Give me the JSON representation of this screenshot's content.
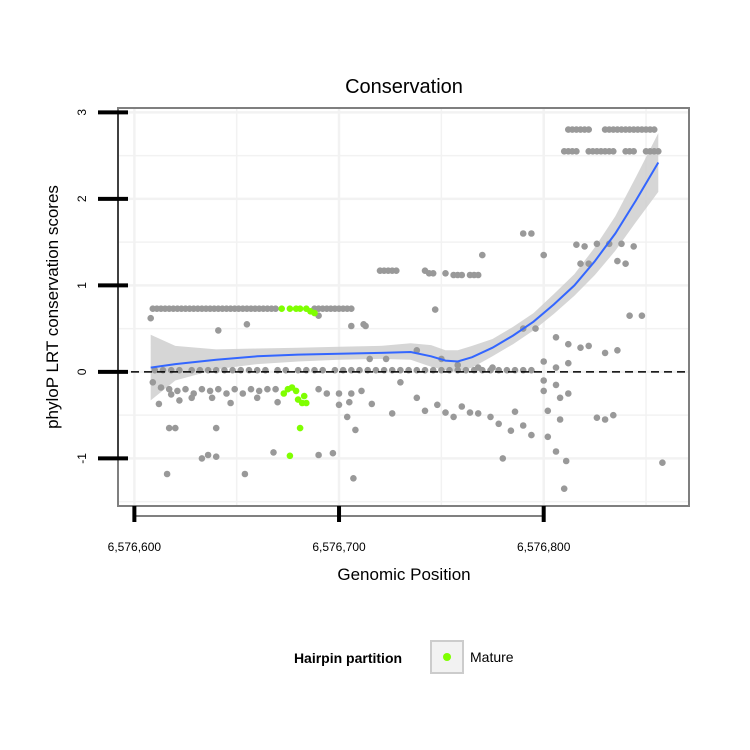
{
  "chart_data": {
    "type": "scatter",
    "title": "Conservation",
    "xlabel": "Genomic Position",
    "ylabel": "phyloP LRT conservation scores",
    "xlim": [
      6576592,
      6576871
    ],
    "ylim": [
      -1.55,
      3.05
    ],
    "x_ticks": [
      6576600,
      6576700,
      6576800
    ],
    "x_tick_labels": [
      "6,576,600",
      "6,576,700",
      "6,576,800"
    ],
    "y_ticks": [
      -1,
      0,
      1,
      2,
      3
    ],
    "y_tick_labels": [
      "-1",
      "0",
      "1",
      "2",
      "3"
    ],
    "grid": true,
    "reference_line": {
      "y": 0,
      "style": "dashed",
      "color": "#000000"
    },
    "colors": {
      "points": "#999999",
      "mature": "#7FFF00",
      "smooth": "#3366FF",
      "band": "#cccccc",
      "grid": "#f2f2f2",
      "panel_border": "#7f7f7f"
    },
    "legend": {
      "title": "Hairpin partition",
      "position": "bottom",
      "entries": [
        "Mature"
      ]
    },
    "series": [
      {
        "name": "",
        "color": "#999999",
        "points": [
          [
            6576609,
            0.73
          ],
          [
            6576611,
            0.73
          ],
          [
            6576613,
            0.73
          ],
          [
            6576615,
            0.73
          ],
          [
            6576617,
            0.73
          ],
          [
            6576619,
            0.73
          ],
          [
            6576621,
            0.73
          ],
          [
            6576623,
            0.73
          ],
          [
            6576625,
            0.73
          ],
          [
            6576627,
            0.73
          ],
          [
            6576629,
            0.73
          ],
          [
            6576631,
            0.73
          ],
          [
            6576633,
            0.73
          ],
          [
            6576635,
            0.73
          ],
          [
            6576637,
            0.73
          ],
          [
            6576639,
            0.73
          ],
          [
            6576641,
            0.73
          ],
          [
            6576643,
            0.73
          ],
          [
            6576645,
            0.73
          ],
          [
            6576647,
            0.73
          ],
          [
            6576649,
            0.73
          ],
          [
            6576651,
            0.73
          ],
          [
            6576653,
            0.73
          ],
          [
            6576655,
            0.73
          ],
          [
            6576657,
            0.73
          ],
          [
            6576659,
            0.73
          ],
          [
            6576661,
            0.73
          ],
          [
            6576663,
            0.73
          ],
          [
            6576665,
            0.73
          ],
          [
            6576667,
            0.73
          ],
          [
            6576669,
            0.73
          ],
          [
            6576688,
            0.73
          ],
          [
            6576690,
            0.73
          ],
          [
            6576692,
            0.73
          ],
          [
            6576694,
            0.73
          ],
          [
            6576696,
            0.73
          ],
          [
            6576698,
            0.73
          ],
          [
            6576700,
            0.73
          ],
          [
            6576702,
            0.73
          ],
          [
            6576704,
            0.73
          ],
          [
            6576706,
            0.73
          ],
          [
            6576608,
            0.62
          ],
          [
            6576641,
            0.48
          ],
          [
            6576655,
            0.55
          ],
          [
            6576690,
            0.65
          ],
          [
            6576706,
            0.53
          ],
          [
            6576713,
            0.53
          ],
          [
            6576610,
            0.02
          ],
          [
            6576614,
            0.02
          ],
          [
            6576618,
            0.02
          ],
          [
            6576622,
            0.02
          ],
          [
            6576628,
            0.02
          ],
          [
            6576632,
            0.02
          ],
          [
            6576636,
            0.02
          ],
          [
            6576640,
            0.02
          ],
          [
            6576644,
            0.02
          ],
          [
            6576648,
            0.02
          ],
          [
            6576652,
            0.02
          ],
          [
            6576656,
            0.02
          ],
          [
            6576660,
            0.02
          ],
          [
            6576664,
            0.02
          ],
          [
            6576670,
            0.02
          ],
          [
            6576674,
            0.02
          ],
          [
            6576680,
            0.02
          ],
          [
            6576684,
            0.02
          ],
          [
            6576688,
            0.02
          ],
          [
            6576692,
            0.02
          ],
          [
            6576698,
            0.02
          ],
          [
            6576702,
            0.02
          ],
          [
            6576706,
            0.02
          ],
          [
            6576710,
            0.02
          ],
          [
            6576714,
            0.02
          ],
          [
            6576718,
            0.02
          ],
          [
            6576722,
            0.02
          ],
          [
            6576726,
            0.02
          ],
          [
            6576730,
            0.02
          ],
          [
            6576734,
            0.02
          ],
          [
            6576738,
            0.02
          ],
          [
            6576742,
            0.02
          ],
          [
            6576746,
            0.02
          ],
          [
            6576750,
            0.02
          ],
          [
            6576754,
            0.02
          ],
          [
            6576758,
            0.02
          ],
          [
            6576762,
            0.02
          ],
          [
            6576766,
            0.02
          ],
          [
            6576770,
            0.02
          ],
          [
            6576774,
            0.02
          ],
          [
            6576778,
            0.02
          ],
          [
            6576782,
            0.02
          ],
          [
            6576786,
            0.02
          ],
          [
            6576790,
            0.02
          ],
          [
            6576794,
            0.02
          ],
          [
            6576609,
            -0.12
          ],
          [
            6576613,
            -0.18
          ],
          [
            6576617,
            -0.2
          ],
          [
            6576621,
            -0.22
          ],
          [
            6576625,
            -0.2
          ],
          [
            6576629,
            -0.25
          ],
          [
            6576633,
            -0.2
          ],
          [
            6576637,
            -0.22
          ],
          [
            6576641,
            -0.2
          ],
          [
            6576645,
            -0.25
          ],
          [
            6576649,
            -0.2
          ],
          [
            6576653,
            -0.25
          ],
          [
            6576657,
            -0.2
          ],
          [
            6576661,
            -0.22
          ],
          [
            6576665,
            -0.2
          ],
          [
            6576669,
            -0.2
          ],
          [
            6576690,
            -0.2
          ],
          [
            6576694,
            -0.25
          ],
          [
            6576700,
            -0.25
          ],
          [
            6576706,
            -0.25
          ],
          [
            6576711,
            -0.22
          ],
          [
            6576612,
            -0.37
          ],
          [
            6576618,
            -0.26
          ],
          [
            6576622,
            -0.33
          ],
          [
            6576628,
            -0.3
          ],
          [
            6576638,
            -0.3
          ],
          [
            6576647,
            -0.36
          ],
          [
            6576660,
            -0.3
          ],
          [
            6576670,
            -0.35
          ],
          [
            6576700,
            -0.38
          ],
          [
            6576705,
            -0.35
          ],
          [
            6576716,
            -0.37
          ],
          [
            6576726,
            -0.48
          ],
          [
            6576617,
            -0.65
          ],
          [
            6576620,
            -0.65
          ],
          [
            6576640,
            -0.65
          ],
          [
            6576704,
            -0.52
          ],
          [
            6576633,
            -1.0
          ],
          [
            6576636,
            -0.96
          ],
          [
            6576640,
            -0.98
          ],
          [
            6576654,
            -1.18
          ],
          [
            6576668,
            -0.93
          ],
          [
            6576690,
            -0.96
          ],
          [
            6576697,
            -0.94
          ],
          [
            6576708,
            -0.67
          ],
          [
            6576616,
            -1.18
          ],
          [
            6576707,
            -1.23
          ],
          [
            6576720,
            1.17
          ],
          [
            6576722,
            1.17
          ],
          [
            6576724,
            1.17
          ],
          [
            6576726,
            1.17
          ],
          [
            6576728,
            1.17
          ],
          [
            6576742,
            1.17
          ],
          [
            6576744,
            1.14
          ],
          [
            6576746,
            1.14
          ],
          [
            6576752,
            1.14
          ],
          [
            6576756,
            1.12
          ],
          [
            6576758,
            1.12
          ],
          [
            6576760,
            1.12
          ],
          [
            6576764,
            1.12
          ],
          [
            6576766,
            1.12
          ],
          [
            6576768,
            1.12
          ],
          [
            6576770,
            1.35
          ],
          [
            6576712,
            0.55
          ],
          [
            6576747,
            0.72
          ],
          [
            6576715,
            0.15
          ],
          [
            6576723,
            0.15
          ],
          [
            6576738,
            0.25
          ],
          [
            6576750,
            0.15
          ],
          [
            6576758,
            0.08
          ],
          [
            6576768,
            0.05
          ],
          [
            6576775,
            0.05
          ],
          [
            6576730,
            -0.12
          ],
          [
            6576738,
            -0.3
          ],
          [
            6576742,
            -0.45
          ],
          [
            6576748,
            -0.38
          ],
          [
            6576752,
            -0.47
          ],
          [
            6576756,
            -0.52
          ],
          [
            6576760,
            -0.4
          ],
          [
            6576764,
            -0.47
          ],
          [
            6576768,
            -0.48
          ],
          [
            6576774,
            -0.52
          ],
          [
            6576778,
            -0.6
          ],
          [
            6576784,
            -0.68
          ],
          [
            6576786,
            -0.46
          ],
          [
            6576790,
            -0.62
          ],
          [
            6576794,
            -0.73
          ],
          [
            6576780,
            -1.0
          ],
          [
            6576790,
            1.6
          ],
          [
            6576794,
            1.6
          ],
          [
            6576800,
            1.35
          ],
          [
            6576790,
            0.5
          ],
          [
            6576796,
            0.5
          ],
          [
            6576806,
            0.4
          ],
          [
            6576800,
            0.12
          ],
          [
            6576806,
            0.05
          ],
          [
            6576812,
            0.1
          ],
          [
            6576800,
            -0.1
          ],
          [
            6576806,
            -0.15
          ],
          [
            6576812,
            -0.25
          ],
          [
            6576800,
            -0.22
          ],
          [
            6576808,
            -0.3
          ],
          [
            6576802,
            -0.45
          ],
          [
            6576808,
            -0.55
          ],
          [
            6576802,
            -0.75
          ],
          [
            6576806,
            -0.92
          ],
          [
            6576811,
            -1.03
          ],
          [
            6576810,
            -1.35
          ],
          [
            6576812,
            0.32
          ],
          [
            6576818,
            0.28
          ],
          [
            6576812,
            2.8
          ],
          [
            6576814,
            2.8
          ],
          [
            6576816,
            2.8
          ],
          [
            6576818,
            2.8
          ],
          [
            6576820,
            2.8
          ],
          [
            6576822,
            2.8
          ],
          [
            6576830,
            2.8
          ],
          [
            6576832,
            2.8
          ],
          [
            6576834,
            2.8
          ],
          [
            6576836,
            2.8
          ],
          [
            6576838,
            2.8
          ],
          [
            6576840,
            2.8
          ],
          [
            6576842,
            2.8
          ],
          [
            6576844,
            2.8
          ],
          [
            6576846,
            2.8
          ],
          [
            6576848,
            2.8
          ],
          [
            6576850,
            2.8
          ],
          [
            6576852,
            2.8
          ],
          [
            6576854,
            2.8
          ],
          [
            6576810,
            2.55
          ],
          [
            6576812,
            2.55
          ],
          [
            6576814,
            2.55
          ],
          [
            6576816,
            2.55
          ],
          [
            6576822,
            2.55
          ],
          [
            6576824,
            2.55
          ],
          [
            6576826,
            2.55
          ],
          [
            6576828,
            2.55
          ],
          [
            6576830,
            2.55
          ],
          [
            6576832,
            2.55
          ],
          [
            6576834,
            2.55
          ],
          [
            6576840,
            2.55
          ],
          [
            6576842,
            2.55
          ],
          [
            6576844,
            2.55
          ],
          [
            6576850,
            2.55
          ],
          [
            6576852,
            2.55
          ],
          [
            6576854,
            2.55
          ],
          [
            6576856,
            2.55
          ],
          [
            6576816,
            1.47
          ],
          [
            6576820,
            1.45
          ],
          [
            6576826,
            1.48
          ],
          [
            6576832,
            1.48
          ],
          [
            6576838,
            1.48
          ],
          [
            6576844,
            1.45
          ],
          [
            6576818,
            1.25
          ],
          [
            6576822,
            1.25
          ],
          [
            6576836,
            1.28
          ],
          [
            6576840,
            1.25
          ],
          [
            6576822,
            0.3
          ],
          [
            6576830,
            0.22
          ],
          [
            6576836,
            0.25
          ],
          [
            6576842,
            0.65
          ],
          [
            6576848,
            0.65
          ],
          [
            6576826,
            -0.53
          ],
          [
            6576830,
            -0.55
          ],
          [
            6576834,
            -0.5
          ],
          [
            6576858,
            -1.05
          ]
        ]
      },
      {
        "name": "Mature",
        "color": "#7FFF00",
        "points": [
          [
            6576672,
            0.73
          ],
          [
            6576676,
            0.73
          ],
          [
            6576679,
            0.73
          ],
          [
            6576681,
            0.73
          ],
          [
            6576684,
            0.73
          ],
          [
            6576686,
            0.7
          ],
          [
            6576688,
            0.68
          ],
          [
            6576675,
            -0.2
          ],
          [
            6576677,
            -0.18
          ],
          [
            6576679,
            -0.22
          ],
          [
            6576673,
            -0.25
          ],
          [
            6576680,
            -0.32
          ],
          [
            6576683,
            -0.28
          ],
          [
            6576682,
            -0.36
          ],
          [
            6576684,
            -0.36
          ],
          [
            6576681,
            -0.65
          ],
          [
            6576676,
            -0.97
          ]
        ]
      }
    ],
    "smooth": {
      "x": [
        6576608,
        6576620,
        6576640,
        6576660,
        6576680,
        6576700,
        6576720,
        6576735,
        6576745,
        6576752,
        6576758,
        6576765,
        6576775,
        6576785,
        6576795,
        6576805,
        6576815,
        6576825,
        6576835,
        6576845,
        6576856
      ],
      "y": [
        0.05,
        0.09,
        0.14,
        0.18,
        0.2,
        0.21,
        0.22,
        0.23,
        0.18,
        0.13,
        0.12,
        0.17,
        0.28,
        0.42,
        0.58,
        0.78,
        1.0,
        1.28,
        1.6,
        1.98,
        2.42
      ],
      "lower": [
        -0.33,
        -0.1,
        0.03,
        0.09,
        0.12,
        0.14,
        0.15,
        0.14,
        0.06,
        0.02,
        0.0,
        0.05,
        0.18,
        0.32,
        0.48,
        0.67,
        0.88,
        1.12,
        1.4,
        1.73,
        2.08
      ],
      "upper": [
        0.43,
        0.3,
        0.26,
        0.27,
        0.28,
        0.29,
        0.3,
        0.33,
        0.31,
        0.25,
        0.25,
        0.3,
        0.38,
        0.52,
        0.68,
        0.9,
        1.13,
        1.44,
        1.8,
        2.25,
        2.76
      ]
    }
  }
}
